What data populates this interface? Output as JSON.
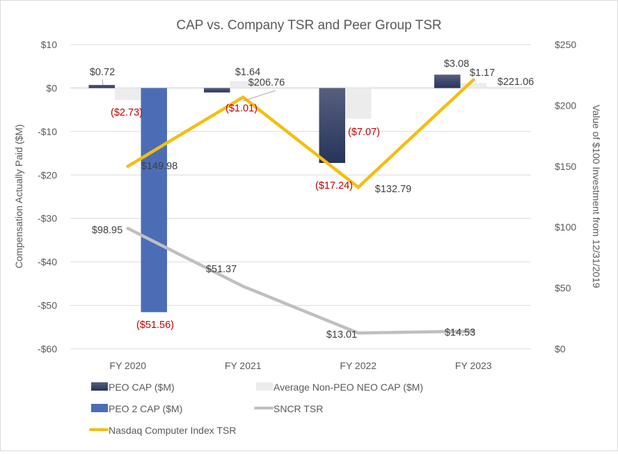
{
  "chart_data": {
    "type": "bar",
    "title": "CAP vs. Company TSR and Peer Group TSR",
    "categories": [
      "FY 2020",
      "FY 2021",
      "FY 2022",
      "FY 2023"
    ],
    "ylabel_left": "Compensation Actually Paid ($M)",
    "ylabel_right": "Value of $100 Investment from 12/31/2019",
    "ylim_left": [
      -60,
      10
    ],
    "ylim_right": [
      0,
      250
    ],
    "left_ticks": [
      "$10",
      "$0",
      "-$10",
      "-$20",
      "-$30",
      "-$40",
      "-$50",
      "-$60"
    ],
    "left_tick_values": [
      10,
      0,
      -10,
      -20,
      -30,
      -40,
      -50,
      -60
    ],
    "right_ticks": [
      "$250",
      "$200",
      "$150",
      "$100",
      "$50",
      "$0"
    ],
    "right_tick_values": [
      250,
      200,
      150,
      100,
      50,
      0
    ],
    "grid": true,
    "legend_position": "bottom",
    "series": [
      {
        "name": "PEO CAP ($M)",
        "kind": "bar",
        "axis": "left",
        "color": "#2f3d64",
        "values": [
          0.72,
          -1.01,
          -17.24,
          3.08
        ],
        "labels": [
          "$0.72",
          "($1.01)",
          "($17.24)",
          "$3.08"
        ]
      },
      {
        "name": "Average Non-PEO NEO CAP ($M)",
        "kind": "bar",
        "axis": "left",
        "color": "#ececec",
        "values": [
          -2.73,
          1.64,
          -7.07,
          1.17
        ],
        "labels": [
          "($2.73)",
          "$1.64",
          "($7.07)",
          "$1.17"
        ]
      },
      {
        "name": "PEO 2 CAP ($M)",
        "kind": "bar",
        "axis": "left",
        "color": "#4a6db5",
        "values": [
          -51.56,
          null,
          null,
          null
        ],
        "labels": [
          "($51.56)",
          null,
          null,
          null
        ]
      },
      {
        "name": "SNCR TSR",
        "kind": "line",
        "axis": "right",
        "color": "#bfbfbf",
        "values": [
          98.95,
          51.37,
          13.01,
          14.53
        ],
        "labels": [
          "$98.95",
          "$51.37",
          "$13.01",
          "$14.53"
        ]
      },
      {
        "name": "Nasdaq Computer Index TSR",
        "kind": "line",
        "axis": "right",
        "color": "#f5bd0f",
        "values": [
          149.98,
          206.76,
          132.79,
          221.06
        ],
        "labels": [
          "$149.98",
          "$206.76",
          "$132.79",
          "$221.06"
        ]
      }
    ],
    "legend": [
      {
        "label": "PEO CAP ($M)",
        "swatch": "bar",
        "color": "#2f3d64"
      },
      {
        "label": "Average Non-PEO NEO CAP ($M)",
        "swatch": "bar",
        "color": "#ececec"
      },
      {
        "label": "PEO 2 CAP ($M)",
        "swatch": "bar",
        "color": "#4a6db5"
      },
      {
        "label": "SNCR TSR",
        "swatch": "line",
        "color": "#bfbfbf"
      },
      {
        "label": "Nasdaq Computer Index TSR",
        "swatch": "line",
        "color": "#f5bd0f"
      }
    ],
    "negative_label_color": "#c00000"
  }
}
